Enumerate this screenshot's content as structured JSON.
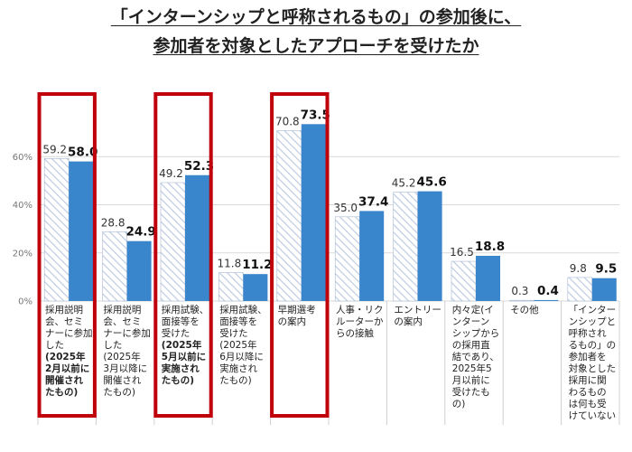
{
  "title_lines": [
    "「インターンシップと呼称されるもの」の参加後に、",
    "参加者を対象としたアプローチを受けたか"
  ],
  "colors": {
    "series1_hatch": "#b9c7df",
    "series2_fill": "#3a86cc",
    "highlight_frame": "#c0000b",
    "grid": "#d9d9d9"
  },
  "chart_data": {
    "type": "bar",
    "title": "「インターンシップと呼称されるもの」の参加後に、参加者を対象としたアプローチを受けたか",
    "ylim": [
      0,
      80
    ],
    "yticks": [
      "0%",
      "20%",
      "40%",
      "60%"
    ],
    "grid": true,
    "categories": [
      {
        "lines": [
          "採用説明",
          "会、セミ",
          "ナーに参加",
          "した",
          "(2025年",
          "2月以前に",
          "開催され",
          "たもの)"
        ],
        "bold_from": 4,
        "highlight": true
      },
      {
        "lines": [
          "採用説明",
          "会、セミ",
          "ナーに参加",
          "した",
          "(2025年",
          "3月以降に",
          "開催され",
          "たもの)"
        ],
        "bold_from": 99,
        "highlight": false
      },
      {
        "lines": [
          "採用試験、",
          "面接等を",
          "受けた",
          "(2025年",
          "5月以前に",
          "実施され",
          "たもの)"
        ],
        "bold_from": 3,
        "highlight": true
      },
      {
        "lines": [
          "採用試験、",
          "面接等を",
          "受けた",
          "(2025年",
          "6月以降に",
          "実施され",
          "たもの)"
        ],
        "bold_from": 99,
        "highlight": false
      },
      {
        "lines": [
          "早期選考",
          "の案内"
        ],
        "bold_from": 99,
        "highlight": true
      },
      {
        "lines": [
          "人事・リク",
          "ルーターか",
          "らの接触"
        ],
        "bold_from": 99,
        "highlight": false
      },
      {
        "lines": [
          "エントリー",
          "の案内"
        ],
        "bold_from": 99,
        "highlight": false
      },
      {
        "lines": [
          "内々定(イ",
          "ンターン",
          "シップから",
          "の採用直",
          "結であり、",
          "2025年5",
          "月以前に",
          "受けたも",
          "の)"
        ],
        "bold_from": 99,
        "highlight": false
      },
      {
        "lines": [
          "その他"
        ],
        "bold_from": 99,
        "highlight": false
      },
      {
        "lines": [
          "「インター",
          "ンシップと",
          "呼称され",
          "るもの」の",
          "参加者を",
          "対象とした",
          "採用に関",
          "わるもの",
          "は何も受",
          "けていない"
        ],
        "bold_from": 99,
        "highlight": false
      }
    ],
    "series": [
      {
        "values": [
          59.2,
          28.8,
          49.2,
          11.8,
          70.8,
          35.0,
          45.2,
          16.5,
          0.3,
          9.8
        ],
        "labels": [
          "59.2",
          "28.8",
          "49.2",
          "11.8",
          "70.8",
          "35.0",
          "45.2",
          "16.5",
          "0.3",
          "9.8"
        ]
      },
      {
        "values": [
          58.0,
          24.9,
          52.3,
          11.2,
          73.5,
          37.4,
          45.6,
          18.8,
          0.4,
          9.5
        ],
        "labels": [
          "58.0",
          "24.9",
          "52.3",
          "11.2",
          "73.5",
          "37.4",
          "45.6",
          "18.8",
          "0.4",
          "9.5"
        ]
      }
    ]
  }
}
